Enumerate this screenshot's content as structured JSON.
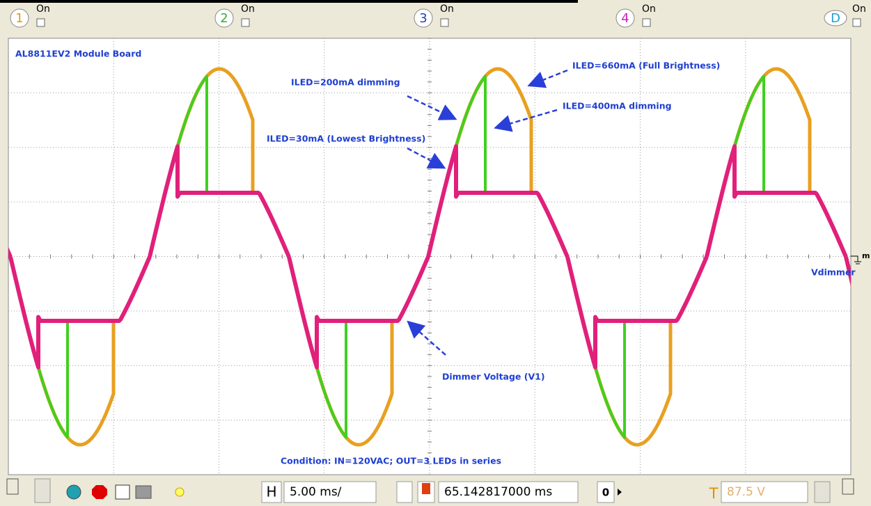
{
  "channels": [
    {
      "label": "1",
      "state": "On"
    },
    {
      "label": "2",
      "state": "On"
    },
    {
      "label": "3",
      "state": "On"
    },
    {
      "label": "4",
      "state": "On"
    },
    {
      "label": "D",
      "state": "On"
    }
  ],
  "plot": {
    "annotations": {
      "board": "AL8811EV2 Module Board",
      "full": "ILED=660mA (Full Brightness)",
      "dim200": "ILED=200mA dimming",
      "dim400": "ILED=400mA dimming",
      "lowest": "ILED=30mA (Lowest Brightness)",
      "vdimmer": "Vdimmer",
      "dimmer_voltage": "Dimmer Voltage (V1)",
      "condition": "Condition: IN=120VAC; OUT=3 LEDs in series"
    },
    "marker": "m"
  },
  "toolbar": {
    "h_label": "H",
    "timebase": "5.00 ms/",
    "position": "65.142817000 ms",
    "step": "0",
    "t_label": "T",
    "trigger": "87.5 V"
  }
}
